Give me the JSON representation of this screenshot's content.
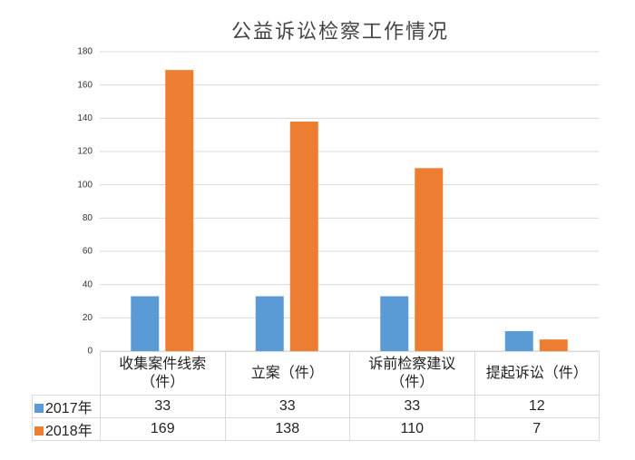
{
  "chart_data": {
    "type": "bar",
    "title": "公益诉讼检察工作情况",
    "categories": [
      "收集案件线索（件）",
      "立案（件）",
      "诉前检察建议（件）",
      "提起诉讼（件）"
    ],
    "series": [
      {
        "name": "2017年",
        "color": "#5b9bd5",
        "values": [
          33,
          33,
          33,
          12
        ]
      },
      {
        "name": "2018年",
        "color": "#ed7d31",
        "values": [
          169,
          138,
          110,
          7
        ]
      }
    ],
    "ylim": [
      0,
      180
    ],
    "yticks": [
      0,
      20,
      40,
      60,
      80,
      100,
      120,
      140,
      160,
      180
    ],
    "grid": true
  }
}
